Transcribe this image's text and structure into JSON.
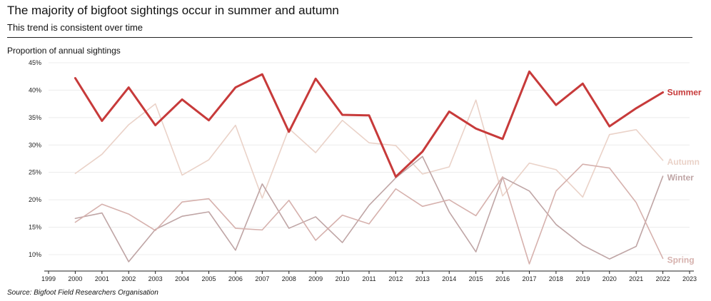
{
  "header": {
    "title": "The majority of bigfoot sightings occur in summer and autumn",
    "subtitle": "This trend is consistent over time"
  },
  "footer": {
    "source": "Source: Bigfoot Field Researchers Organisation"
  },
  "chart_data": {
    "type": "line",
    "title": "The majority of bigfoot sightings occur in summer and autumn",
    "subtitle": "This trend is consistent over time",
    "xlabel": "",
    "ylabel": "Proportion of annual sightings",
    "x": [
      2000,
      2001,
      2002,
      2003,
      2004,
      2005,
      2006,
      2007,
      2008,
      2009,
      2010,
      2011,
      2012,
      2013,
      2014,
      2015,
      2016,
      2017,
      2018,
      2019,
      2020,
      2021,
      2022
    ],
    "xlim": [
      1999,
      2023
    ],
    "x_ticks": [
      "1999",
      "2000",
      "2001",
      "2002",
      "2003",
      "2004",
      "2005",
      "2006",
      "2007",
      "2008",
      "2009",
      "2010",
      "2011",
      "2012",
      "2013",
      "2014",
      "2015",
      "2016",
      "2017",
      "2018",
      "2019",
      "2020",
      "2021",
      "2022",
      "2023"
    ],
    "ylim": [
      7,
      45
    ],
    "y_ticks": [
      10,
      15,
      20,
      25,
      30,
      35,
      40,
      45
    ],
    "y_tick_labels": [
      "10%",
      "15%",
      "20%",
      "25%",
      "30%",
      "35%",
      "40%",
      "45%"
    ],
    "grid": true,
    "legend": "direct labels at line ends (right)",
    "series": [
      {
        "name": "Autumn",
        "color": "#ead2c8",
        "values": [
          24.8,
          28.3,
          33.7,
          37.5,
          24.5,
          27.3,
          33.6,
          20.3,
          33.0,
          28.6,
          34.5,
          30.4,
          29.9,
          24.7,
          26.0,
          38.2,
          20.7,
          26.7,
          25.5,
          20.5,
          31.9,
          32.8,
          27.2
        ]
      },
      {
        "name": "Winter",
        "color": "#bfa5a5",
        "values": [
          16.6,
          17.6,
          8.7,
          14.6,
          17.0,
          17.8,
          10.8,
          22.9,
          14.8,
          16.9,
          12.2,
          19.0,
          24.0,
          27.9,
          17.8,
          10.5,
          24.1,
          21.6,
          15.5,
          11.7,
          9.2,
          11.5,
          24.3
        ]
      },
      {
        "name": "Spring",
        "color": "#d6b1ad",
        "values": [
          15.9,
          19.2,
          17.4,
          14.4,
          19.6,
          20.2,
          14.8,
          14.5,
          19.9,
          12.6,
          17.2,
          15.6,
          22.0,
          18.8,
          20.0,
          17.1,
          24.2,
          8.3,
          21.6,
          26.5,
          25.8,
          19.5,
          9.3
        ]
      },
      {
        "name": "Summer",
        "color": "#c73a3a",
        "values": [
          42.2,
          34.4,
          40.5,
          33.6,
          38.3,
          34.5,
          40.5,
          42.9,
          32.4,
          42.1,
          35.5,
          35.4,
          24.2,
          28.8,
          36.1,
          33.0,
          31.1,
          43.4,
          37.3,
          41.2,
          33.4,
          36.7,
          39.6
        ]
      }
    ]
  }
}
